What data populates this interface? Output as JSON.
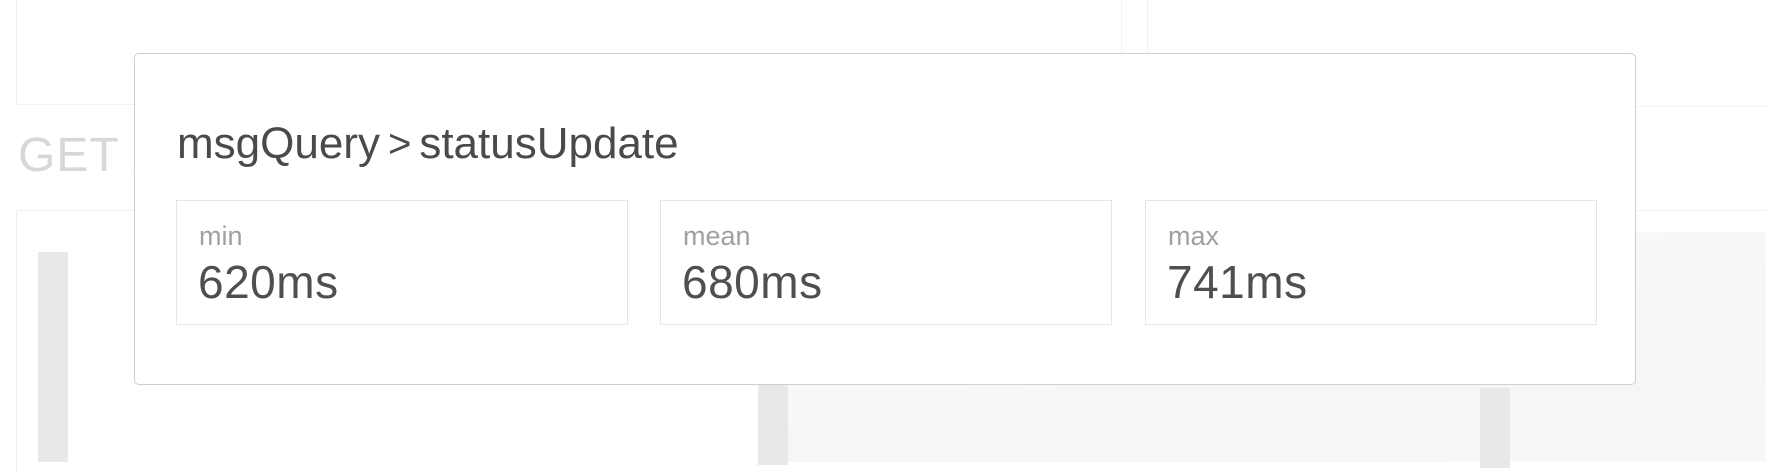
{
  "background": {
    "heading": "GET /"
  },
  "popover": {
    "title": {
      "parent": "msgQuery",
      "separator": ">",
      "child": "statusUpdate"
    },
    "stats": [
      {
        "label": "min",
        "value": "620ms"
      },
      {
        "label": "mean",
        "value": "680ms"
      },
      {
        "label": "max",
        "value": "741ms"
      }
    ]
  },
  "colors": {
    "title_text": "#4a4a4a",
    "label_text": "#a0a0a0",
    "value_text": "#4f4f4f",
    "border": "#cfcfcf",
    "background_heading": "#d7d7d7"
  }
}
